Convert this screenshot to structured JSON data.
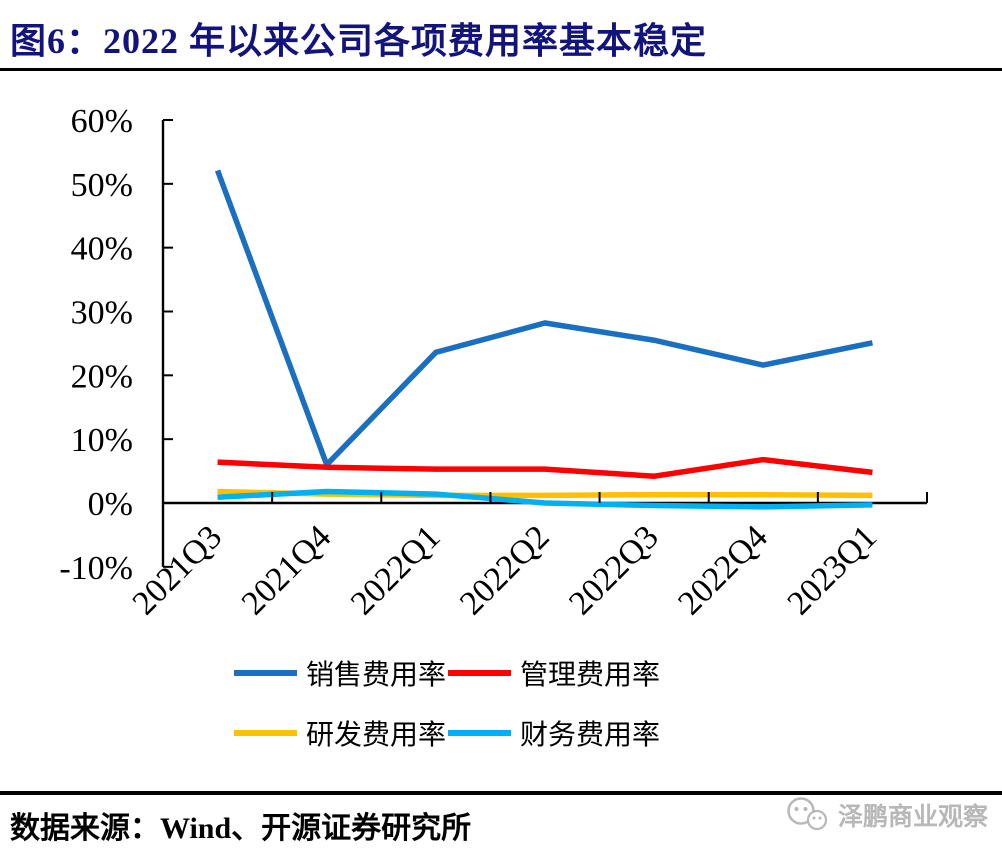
{
  "header": {
    "title": "图6：2022 年以来公司各项费用率基本稳定"
  },
  "footer": {
    "source": "数据来源：Wind、开源证券研究所",
    "watermark": "泽鹏商业观察"
  },
  "colors": {
    "title": "#13137E",
    "axis": "#000000",
    "watermark": "#B8B8B8"
  },
  "chart_data": {
    "type": "line",
    "title": "2022 年以来公司各项费用率基本稳定",
    "categories": [
      "2021Q3",
      "2021Q4",
      "2022Q1",
      "2022Q2",
      "2022Q3",
      "2022Q4",
      "2023Q1"
    ],
    "series": [
      {
        "name": "销售费用率",
        "key": "sales",
        "color": "#1B6FC0",
        "values": [
          52.1,
          6.0,
          23.6,
          28.2,
          25.5,
          21.6,
          25.1
        ]
      },
      {
        "name": "管理费用率",
        "key": "admin",
        "color": "#FF0000",
        "values": [
          6.4,
          5.6,
          5.3,
          5.3,
          4.2,
          6.8,
          4.8
        ]
      },
      {
        "name": "研发费用率",
        "key": "rd",
        "color": "#FFC000",
        "values": [
          1.8,
          1.4,
          1.2,
          1.2,
          1.3,
          1.3,
          1.2
        ]
      },
      {
        "name": "财务费用率",
        "key": "finance",
        "color": "#00B0F0",
        "values": [
          0.9,
          1.8,
          1.4,
          0.0,
          -0.4,
          -0.6,
          -0.3
        ]
      }
    ],
    "xlabel": "",
    "ylabel": "",
    "ylim": [
      -10,
      60
    ],
    "ytick_step": 10,
    "ytick_labels": [
      "60%",
      "50%",
      "40%",
      "30%",
      "20%",
      "10%",
      "0%",
      "-10%"
    ],
    "xlabel_rotation": -45,
    "legend_position": "bottom",
    "grid": false
  }
}
